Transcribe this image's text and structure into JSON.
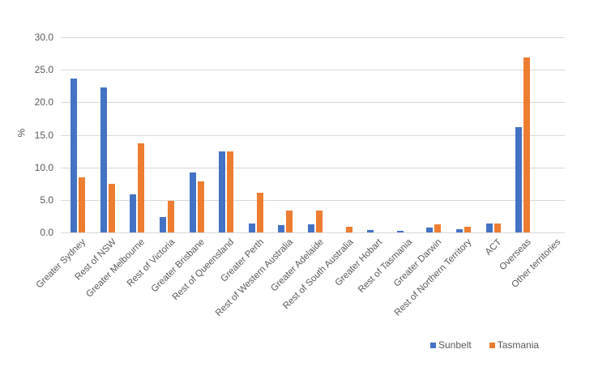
{
  "chart_data": {
    "type": "bar",
    "title": "",
    "xlabel": "",
    "ylabel": "%",
    "ylim": [
      0,
      30
    ],
    "yticks": [
      "0.0",
      "5.0",
      "10.0",
      "15.0",
      "20.0",
      "25.0",
      "30.0"
    ],
    "grid": true,
    "legend_position": "bottom-right",
    "categories": [
      "Greater Sydney",
      "Rest of NSW",
      "Greater Melbourne",
      "Rest of Victoria",
      "Greater Brisbane",
      "Rest of Queensland",
      "Greater Perth",
      "Rest of Western Australia",
      "Greater Adelaide",
      "Rest of South Australia",
      "Greater Hobart",
      "Rest of Tasmania",
      "Greater Darwin",
      "Rest of Northern Territory",
      "ACT",
      "Overseas",
      "Other territories"
    ],
    "series": [
      {
        "name": "Sunbelt",
        "color": "#4472C4",
        "values": [
          23.6,
          22.3,
          5.9,
          2.4,
          9.2,
          12.5,
          1.4,
          1.1,
          1.2,
          0.0,
          0.4,
          0.3,
          0.8,
          0.5,
          1.4,
          16.2,
          0.0
        ]
      },
      {
        "name": "Tasmania",
        "color": "#ED7D31",
        "values": [
          8.5,
          7.5,
          13.7,
          4.9,
          7.8,
          12.5,
          6.1,
          3.4,
          3.4,
          0.9,
          0.0,
          0.0,
          1.2,
          0.9,
          1.4,
          26.9,
          0.0
        ]
      }
    ]
  },
  "legend": {
    "items": [
      {
        "label": "Sunbelt",
        "color": "#4472C4"
      },
      {
        "label": "Tasmania",
        "color": "#ED7D31"
      }
    ]
  }
}
